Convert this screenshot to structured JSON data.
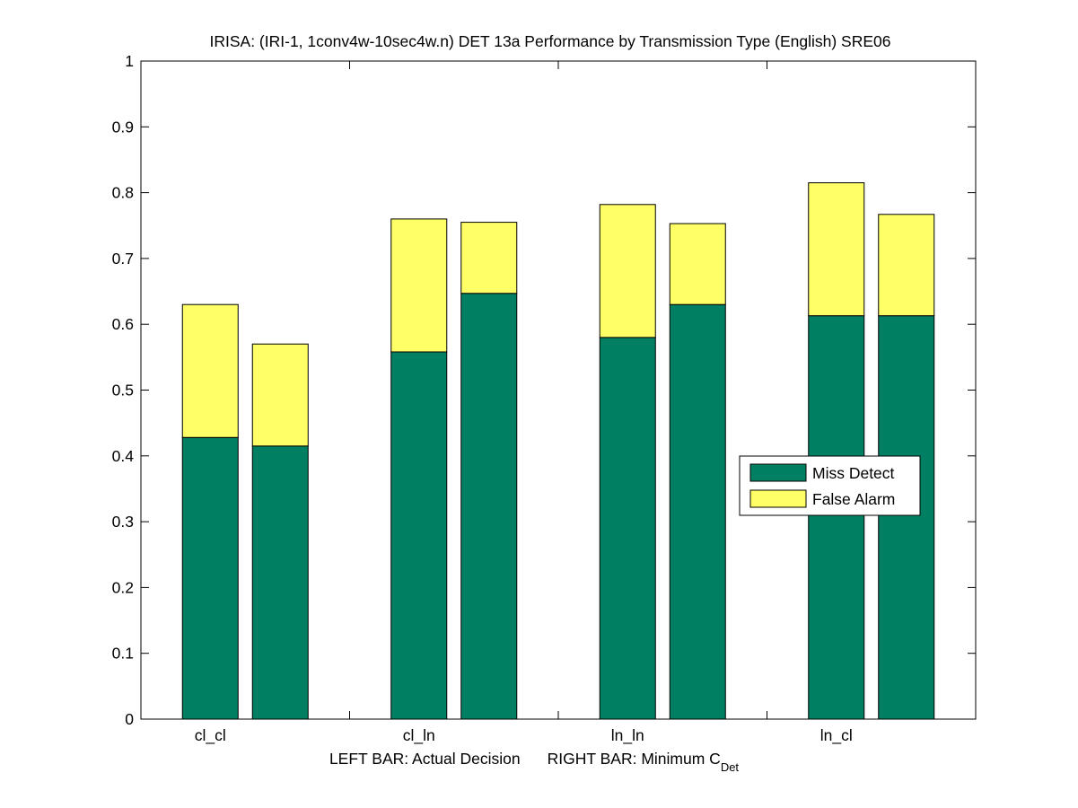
{
  "chart_data": {
    "type": "bar",
    "stacked": true,
    "title": "IRISA: (IRI-1, 1conv4w-10sec4w.n) DET 13a Performance by Transmission Type (English) SRE06",
    "xlabel": {
      "left": "LEFT BAR: Actual Decision",
      "right_prefix": "RIGHT BAR: Minimum C",
      "right_subscript": "Det"
    },
    "ylabel": "",
    "ylim": [
      0,
      1
    ],
    "yticks": [
      "0",
      "0.1",
      "0.2",
      "0.3",
      "0.4",
      "0.5",
      "0.6",
      "0.7",
      "0.8",
      "0.9",
      "1"
    ],
    "grid": false,
    "legend_position": "right",
    "categories": [
      "cl_cl",
      "cl_ln",
      "ln_ln",
      "ln_cl"
    ],
    "bar_roles": [
      "Actual Decision",
      "Minimum C_Det"
    ],
    "series": [
      {
        "name": "Miss Detect",
        "color": "#007f62",
        "actual": [
          0.428,
          0.558,
          0.58,
          0.613
        ],
        "minimum": [
          0.415,
          0.647,
          0.63,
          0.613
        ]
      },
      {
        "name": "False Alarm",
        "color": "#ffff66",
        "actual": [
          0.202,
          0.202,
          0.202,
          0.202
        ],
        "minimum": [
          0.155,
          0.108,
          0.123,
          0.154
        ]
      }
    ]
  }
}
